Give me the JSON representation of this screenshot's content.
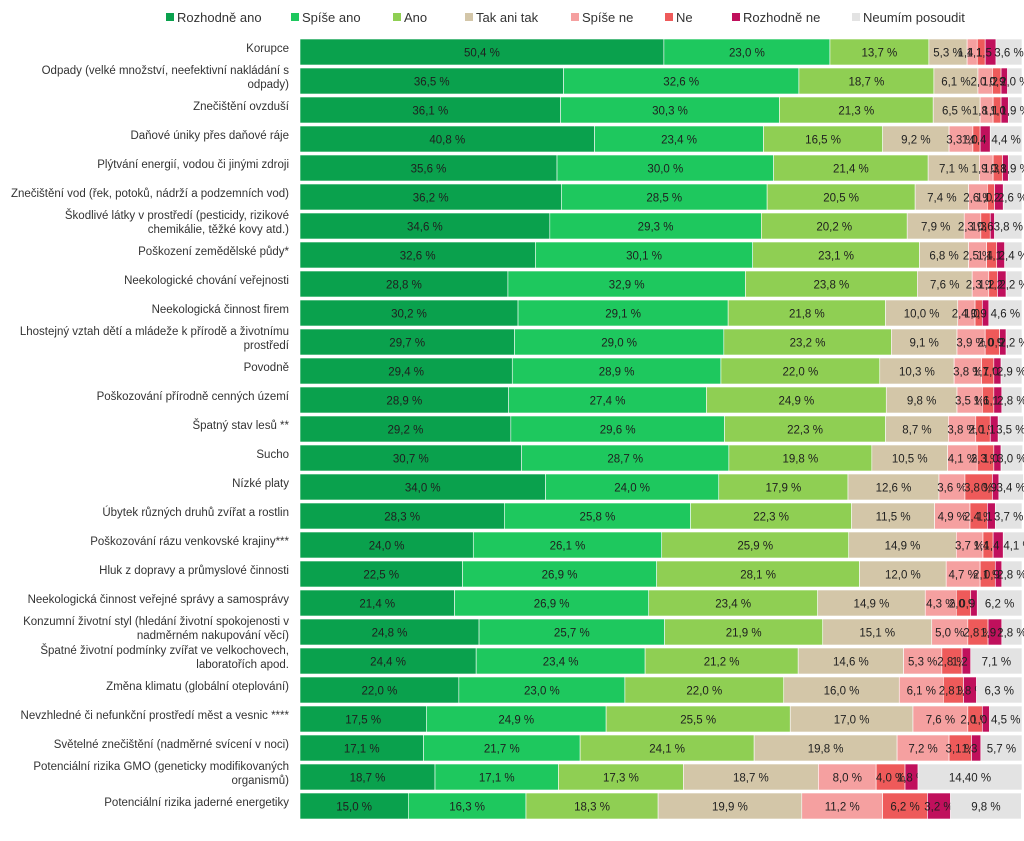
{
  "chart_data": {
    "type": "bar",
    "orientation": "horizontal",
    "stacked": true,
    "legend_position": "top",
    "xlim": [
      0,
      100
    ],
    "series": [
      {
        "name": "Rozhodně ano",
        "color": "#0aa14d",
        "label_color": "#1f1f1f"
      },
      {
        "name": "Spíše ano",
        "color": "#1ec85e",
        "label_color": "#1f1f1f"
      },
      {
        "name": "Ano",
        "color": "#8fcf53",
        "label_color": "#1f1f1f"
      },
      {
        "name": "Tak ani tak",
        "color": "#d3c6a8",
        "label_color": "#1f1f1f"
      },
      {
        "name": "Spíše ne",
        "color": "#f5a0a0",
        "label_color": "#1f1f1f"
      },
      {
        "name": "Ne",
        "color": "#ee5a5a",
        "label_color": "#1f1f1f"
      },
      {
        "name": "Rozhodně ne",
        "color": "#c0105c",
        "label_color": "#1f1f1f"
      },
      {
        "name": "Neumím posoudit",
        "color": "#e3e3e3",
        "label_color": "#1f1f1f"
      }
    ],
    "categories": [
      {
        "label": "Korupce",
        "values": [
          50.4,
          23.0,
          13.7,
          5.3,
          1.4,
          1.1,
          1.5,
          3.6
        ],
        "value_labels": [
          "50,4 %",
          "23,0 %",
          "13,7 %",
          "5,3 %",
          "1,4 %",
          "1,1 %",
          "1,5 %",
          "3,6 %"
        ]
      },
      {
        "label": "Odpady (velké množství, neefektivní nakládání s odpady)",
        "values": [
          36.5,
          32.6,
          18.7,
          6.1,
          2.0,
          1.2,
          0.9,
          2.0
        ],
        "value_labels": [
          "36,5 %",
          "32,6 %",
          "18,7 %",
          "6,1 %",
          "2,0 %",
          "1,2 %",
          "0,9 %",
          "2,0 %"
        ]
      },
      {
        "label": "Znečištění ovzduší",
        "values": [
          36.1,
          30.3,
          21.3,
          6.5,
          1.8,
          1.1,
          1.0,
          1.9
        ],
        "value_labels": [
          "36,1 %",
          "30,3 %",
          "21,3 %",
          "6,5 %",
          "1,8 %",
          "1,1 %",
          "1,0 %",
          "1,9 %"
        ]
      },
      {
        "label": "Daňové úniky přes daňové ráje",
        "values": [
          40.8,
          23.4,
          16.5,
          9.2,
          3.3,
          1.0,
          1.4,
          4.4
        ],
        "value_labels": [
          "40,8 %",
          "23,4 %",
          "16,5 %",
          "9,2 %",
          "3,3 %",
          "1,0 %",
          "1,4 %",
          "4,4 %"
        ]
      },
      {
        "label": "Plýtvání energií, vodou či jinými zdroji",
        "values": [
          35.6,
          30.0,
          21.4,
          7.1,
          1.9,
          1.3,
          0.8,
          1.9
        ],
        "value_labels": [
          "35,6 %",
          "30,0 %",
          "21,4 %",
          "7,1 %",
          "1,9 %",
          "1,3 %",
          "0,8 %",
          "1,9 %"
        ]
      },
      {
        "label": "Znečištění vod (řek, potoků, nádrží a podzemních vod)",
        "values": [
          36.2,
          28.5,
          20.5,
          7.4,
          2.6,
          1.0,
          1.2,
          2.6
        ],
        "value_labels": [
          "36,2 %",
          "28,5 %",
          "20,5 %",
          "7,4 %",
          "2,6 %",
          "1,0 %",
          "1,2 %",
          "2,6 %"
        ]
      },
      {
        "label": "Škodlivé látky v prostředí (pesticidy, rizikové chemikálie, těžké kovy atd.)",
        "values": [
          34.6,
          29.3,
          20.2,
          7.9,
          2.3,
          1.3,
          0.6,
          3.8
        ],
        "value_labels": [
          "34,6 %",
          "29,3 %",
          "20,2 %",
          "7,9 %",
          "2,3 %",
          "1,3 %",
          "0,6 %",
          "3,8 %"
        ]
      },
      {
        "label": "Poškození zemědělské půdy*",
        "values": [
          32.6,
          30.1,
          23.1,
          6.8,
          2.5,
          1.4,
          1.1,
          2.4
        ],
        "value_labels": [
          "32,6 %",
          "30,1 %",
          "23,1 %",
          "6,8 %",
          "2,5 %",
          "1,4 %",
          "1,1 %",
          "2,4 %"
        ]
      },
      {
        "label": "Neekologické chování veřejnosti",
        "values": [
          28.8,
          32.9,
          23.8,
          7.6,
          2.3,
          1.2,
          1.2,
          2.2
        ],
        "value_labels": [
          "28,8 %",
          "32,9 %",
          "23,8 %",
          "7,6 %",
          "2,3 %",
          "1,2 %",
          "1,2 %",
          "2,2 %"
        ]
      },
      {
        "label": "Neekologická činnost firem",
        "values": [
          30.2,
          29.1,
          21.8,
          10.0,
          2.4,
          1.0,
          0.9,
          4.6
        ],
        "value_labels": [
          "30,2 %",
          "29,1 %",
          "21,8 %",
          "10,0 %",
          "2,4 %",
          "1,0 %",
          "0,9 %",
          "4,6 %"
        ]
      },
      {
        "label": "Lhostejný vztah dětí a mládeže k přírodě a životnímu prostředí",
        "values": [
          29.7,
          29.0,
          23.2,
          9.1,
          3.9,
          2.0,
          0.9,
          2.2
        ],
        "value_labels": [
          "29,7 %",
          "29,0 %",
          "23,2 %",
          "9,1 %",
          "3,9 %",
          "2,0 %",
          "0,9 %",
          "2,2 %"
        ]
      },
      {
        "label": "Povodně",
        "values": [
          29.4,
          28.9,
          22.0,
          10.3,
          3.8,
          1.7,
          1.0,
          2.9
        ],
        "value_labels": [
          "29,4 %",
          "28,9 %",
          "22,0 %",
          "10,3 %",
          "3,8 %",
          "1,7 %",
          "1,0 %",
          "2,9 %"
        ]
      },
      {
        "label": "Poškozování přírodně cenných území",
        "values": [
          28.9,
          27.4,
          24.9,
          9.8,
          3.5,
          1.6,
          1.1,
          2.8
        ],
        "value_labels": [
          "28,9 %",
          "27,4 %",
          "24,9 %",
          "9,8 %",
          "3,5 %",
          "1,6 %",
          "1,1 %",
          "2,8 %"
        ]
      },
      {
        "label": "Špatný stav lesů **",
        "values": [
          29.2,
          29.6,
          22.3,
          8.7,
          3.8,
          2.0,
          1.1,
          3.5
        ],
        "value_labels": [
          "29,2 %",
          "29,6 %",
          "22,3 %",
          "8,7 %",
          "3,8 %",
          "2,0 %",
          "1,1 %",
          "3,5 %"
        ]
      },
      {
        "label": "Sucho",
        "values": [
          30.7,
          28.7,
          19.8,
          10.5,
          4.1,
          2.3,
          1.0,
          3.0
        ],
        "value_labels": [
          "30,7 %",
          "28,7 %",
          "19,8 %",
          "10,5 %",
          "4,1 %",
          "2,3 %",
          "1,0 %",
          "3,0 %"
        ]
      },
      {
        "label": "Nízké platy",
        "values": [
          34.0,
          24.0,
          17.9,
          12.6,
          3.6,
          3.8,
          0.9,
          3.4
        ],
        "value_labels": [
          "34,0 %",
          "24,0 %",
          "17,9 %",
          "12,6 %",
          "3,6 %",
          "3,8 %",
          "0,9 %",
          "3,4 %"
        ]
      },
      {
        "label": "Úbytek různých druhů zvířat a rostlin",
        "values": [
          28.3,
          25.8,
          22.3,
          11.5,
          4.9,
          2.4,
          1.1,
          3.7
        ],
        "value_labels": [
          "28,3 %",
          "25,8 %",
          "22,3 %",
          "11,5 %",
          "4,9 %",
          "2,4 %",
          "1,1 %",
          "3,7 %"
        ]
      },
      {
        "label": "Poškozování rázu venkovské krajiny***",
        "values": [
          24.0,
          26.1,
          25.9,
          14.9,
          3.7,
          1.4,
          1.4,
          4.1
        ],
        "value_labels": [
          "24,0 %",
          "26,1 %",
          "25,9 %",
          "14,9 %",
          "3,7 %",
          "1,4 %",
          "1,4 %",
          "4,1 %"
        ]
      },
      {
        "label": "Hluk z dopravy a průmyslové činnosti",
        "values": [
          22.5,
          26.9,
          28.1,
          12.0,
          4.7,
          2.1,
          0.9,
          2.8
        ],
        "value_labels": [
          "22,5 %",
          "26,9 %",
          "28,1 %",
          "12,0 %",
          "4,7 %",
          "2,1 %",
          "0,9 %",
          "2,8 %"
        ]
      },
      {
        "label": "Neekologická činnost veřejné správy a samosprávy",
        "values": [
          21.4,
          26.9,
          23.4,
          14.9,
          4.3,
          2.0,
          0.9,
          6.2
        ],
        "value_labels": [
          "21,4 %",
          "26,9 %",
          "23,4 %",
          "14,9 %",
          "4,3 %",
          "2,0 %",
          "0,9 %",
          "6,2 %"
        ]
      },
      {
        "label": "Konzumní životní styl (hledání životní spokojenosti v nadměrném nakupování věcí)",
        "values": [
          24.8,
          25.7,
          21.9,
          15.1,
          5.0,
          2.8,
          1.9,
          2.8
        ],
        "value_labels": [
          "24,8 %",
          "25,7 %",
          "21,9 %",
          "15,1 %",
          "5,0 %",
          "2,8 %",
          "1,9 %",
          "2,8 %"
        ]
      },
      {
        "label": "Špatné životní podmínky zvířat ve velkochovech, laboratořích apod.",
        "values": [
          24.4,
          23.4,
          21.2,
          14.6,
          5.3,
          2.8,
          1.2,
          7.1
        ],
        "value_labels": [
          "24,4 %",
          "23,4 %",
          "21,2 %",
          "14,6 %",
          "5,3 %",
          "2,8 %",
          "1,2 %",
          "7,1 %"
        ]
      },
      {
        "label": "Změna klimatu (globální oteplování)",
        "values": [
          22.0,
          23.0,
          22.0,
          16.0,
          6.1,
          2.8,
          1.8,
          6.3
        ],
        "value_labels": [
          "22,0 %",
          "23,0 %",
          "22,0 %",
          "16,0 %",
          "6,1 %",
          "2,8 %",
          "1,8 %",
          "6,3 %"
        ]
      },
      {
        "label": "Nevzhledné či nefunkční prostředí měst a vesnic ****",
        "values": [
          17.5,
          24.9,
          25.5,
          17.0,
          7.6,
          2.0,
          1.0,
          4.5
        ],
        "value_labels": [
          "17,5 %",
          "24,9 %",
          "25,5 %",
          "17,0 %",
          "7,6 %",
          "2,0 %",
          "1,0 %",
          "4,5 %"
        ]
      },
      {
        "label": "Světelné znečištění (nadměrné svícení v noci)",
        "values": [
          17.1,
          21.7,
          24.1,
          19.8,
          7.2,
          3.1,
          1.3,
          5.7
        ],
        "value_labels": [
          "17,1 %",
          "21,7 %",
          "24,1 %",
          "19,8 %",
          "7,2 %",
          "3,1 %",
          "1,3 %",
          "5,7 %"
        ]
      },
      {
        "label": "Potenciální rizika GMO (geneticky modifikovaných organismů)",
        "values": [
          18.7,
          17.1,
          17.3,
          18.7,
          8.0,
          4.0,
          1.8,
          14.4
        ],
        "value_labels": [
          "18,7 %",
          "17,1 %",
          "17,3 %",
          "18,7 %",
          "8,0 %",
          "4,0 %",
          "1,8 %",
          "14,40 %"
        ]
      },
      {
        "label": "Potenciální rizika jaderné energetiky",
        "values": [
          15.0,
          16.3,
          18.3,
          19.9,
          11.2,
          6.2,
          3.2,
          9.8
        ],
        "value_labels": [
          "15,0 %",
          "16,3 %",
          "18,3 %",
          "19,9 %",
          "11,2 %",
          "6,2 %",
          "3,2 %",
          "9,8 %"
        ]
      }
    ]
  }
}
